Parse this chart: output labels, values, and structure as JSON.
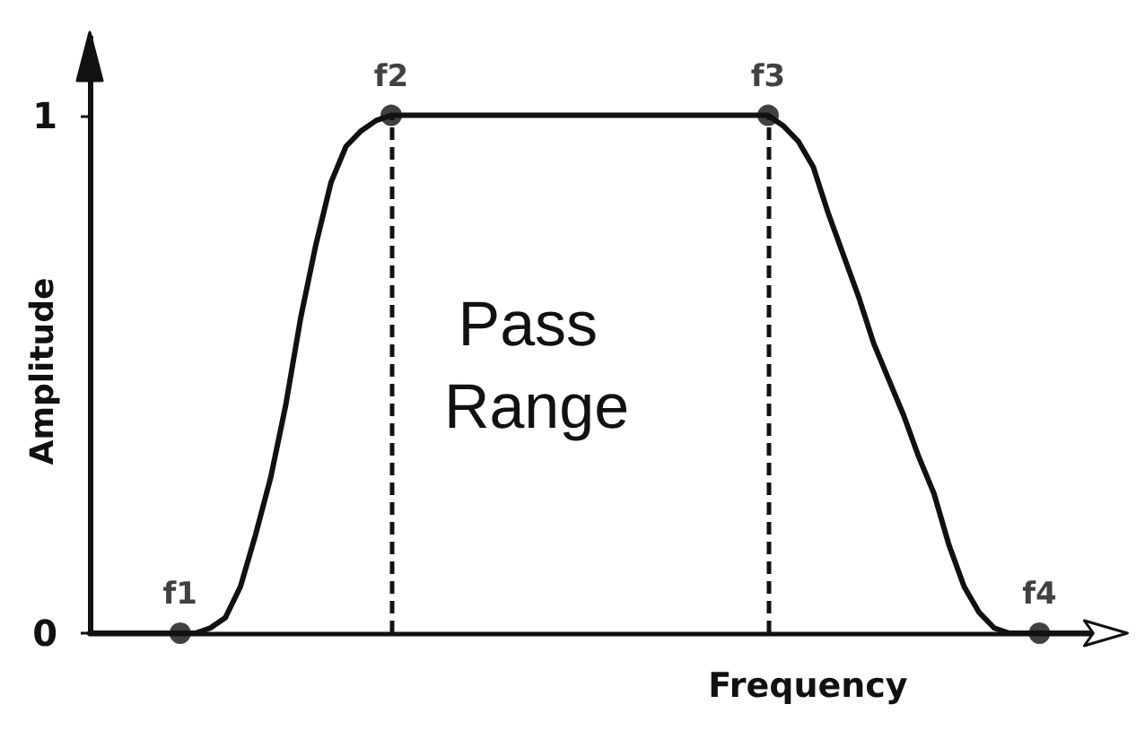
{
  "chart_data": {
    "type": "line",
    "xlabel": "Frequency",
    "ylabel": "Amplitude",
    "categories": [
      null,
      null,
      null,
      null,
      null,
      null,
      null,
      null,
      null,
      null,
      null,
      null,
      null,
      null,
      null,
      null,
      null,
      null,
      null,
      null,
      null,
      null,
      null,
      null,
      null,
      null,
      null,
      null,
      null,
      null,
      null,
      null,
      null,
      null,
      null,
      null,
      null,
      null,
      null,
      null,
      null,
      null,
      null,
      null,
      null,
      null,
      null,
      null,
      null,
      null,
      null,
      null,
      null,
      null,
      null,
      null,
      null,
      null,
      null,
      null,
      null,
      null,
      null,
      null,
      null,
      null,
      null,
      null,
      null
    ],
    "series": [
      {
        "color": "#111111",
        "marker": "none",
        "line_style": "solid",
        "values": [
          0,
          0,
          0,
          0,
          0,
          0,
          0,
          0,
          0.01,
          0.03,
          0.09,
          0.19,
          0.3,
          0.44,
          0.61,
          0.75,
          0.87,
          0.94,
          0.97,
          0.99,
          1,
          1,
          1,
          1,
          1,
          1,
          1,
          1,
          1,
          1,
          1,
          1,
          1,
          1,
          1,
          1,
          1,
          1,
          1,
          1,
          1,
          1,
          1,
          1,
          1,
          1,
          0.98,
          0.95,
          0.9,
          0.81,
          0.73,
          0.65,
          0.56,
          0.49,
          0.42,
          0.34,
          0.27,
          0.17,
          0.09,
          0.04,
          0.01,
          0,
          0,
          0,
          0,
          0,
          0,
          0,
          0
        ]
      },
      {
        "type": "lollipop",
        "color": "#111111",
        "marker": "circle",
        "line_style": "dashed",
        "values": [
          null,
          null,
          null,
          null,
          null,
          null,
          0,
          null,
          null,
          null,
          null,
          null,
          null,
          null,
          null,
          null,
          null,
          null,
          null,
          null,
          1,
          null,
          null,
          null,
          null,
          null,
          null,
          null,
          null,
          null,
          null,
          null,
          null,
          null,
          null,
          null,
          null,
          null,
          null,
          null,
          null,
          null,
          null,
          null,
          null,
          1,
          null,
          null,
          null,
          null,
          null,
          null,
          null,
          null,
          null,
          null,
          null,
          null,
          null,
          null,
          null,
          null,
          null,
          0,
          null,
          null,
          null,
          null,
          null
        ],
        "value_labels": [
          null,
          null,
          null,
          null,
          null,
          null,
          "f1",
          null,
          null,
          null,
          null,
          null,
          null,
          null,
          null,
          null,
          null,
          null,
          null,
          null,
          "f2",
          null,
          null,
          null,
          null,
          null,
          null,
          null,
          null,
          null,
          null,
          null,
          null,
          null,
          null,
          null,
          null,
          null,
          null,
          null,
          null,
          null,
          null,
          null,
          null,
          "f3",
          null,
          null,
          null,
          null,
          null,
          null,
          null,
          null,
          null,
          null,
          null,
          null,
          null,
          null,
          null,
          null,
          null,
          "f4",
          null,
          null,
          null,
          null,
          null
        ]
      }
    ],
    "ylim": [
      0,
      1.15
    ],
    "yticks": [
      0,
      1
    ],
    "tick_labels": "y",
    "annotations": [
      "Pass Range"
    ]
  }
}
